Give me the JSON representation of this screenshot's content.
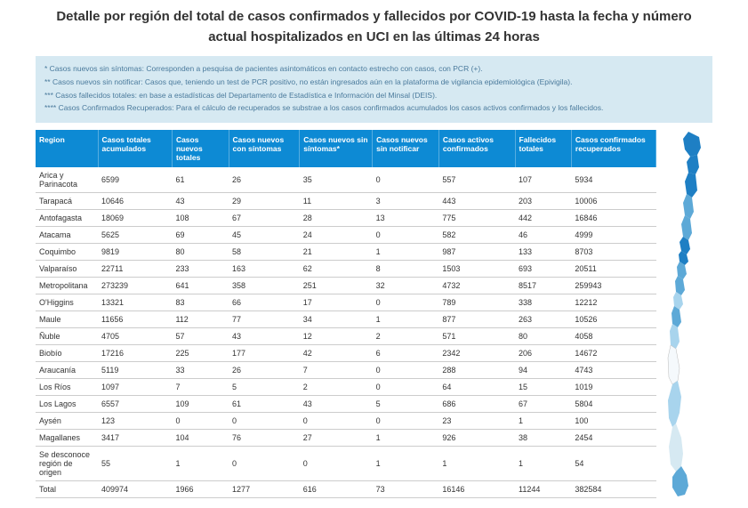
{
  "title": "Detalle por región del total de casos confirmados y fallecidos por COVID-19 hasta la fecha y número actual hospitalizados en UCI en las últimas 24 horas",
  "notes": [
    "* Casos nuevos sin síntomas: Corresponden a pesquisa de pacientes asintomáticos en contacto estrecho con casos, con PCR (+).",
    "** Casos nuevos sin notificar: Casos que, teniendo un test de PCR positivo, no están ingresados aún en la plataforma de vigilancia epidemiológica (Epivigila).",
    "*** Casos fallecidos totales: en base a  estadísticas del Departamento de Estadística e Información del Minsal (DEIS).",
    "**** Casos Confirmados Recuperados: Para el cálculo de recuperados se substrae a los casos confirmados acumulados los casos activos confirmados y los fallecidos."
  ],
  "columns": [
    "Region",
    "Casos totales acumulados",
    "Casos nuevos totales",
    "Casos nuevos con síntomas",
    "Casos nuevos sin síntomas*",
    "Casos nuevos sin notificar",
    "Casos activos confirmados",
    "Fallecidos totales",
    "Casos confirmados recuperados"
  ],
  "rows": [
    [
      "Arica y Parinacota",
      "6599",
      "61",
      "26",
      "35",
      "0",
      "557",
      "107",
      "5934"
    ],
    [
      "Tarapacá",
      "10646",
      "43",
      "29",
      "11",
      "3",
      "443",
      "203",
      "10006"
    ],
    [
      "Antofagasta",
      "18069",
      "108",
      "67",
      "28",
      "13",
      "775",
      "442",
      "16846"
    ],
    [
      "Atacama",
      "5625",
      "69",
      "45",
      "24",
      "0",
      "582",
      "46",
      "4999"
    ],
    [
      "Coquimbo",
      "9819",
      "80",
      "58",
      "21",
      "1",
      "987",
      "133",
      "8703"
    ],
    [
      "Valparaíso",
      "22711",
      "233",
      "163",
      "62",
      "8",
      "1503",
      "693",
      "20511"
    ],
    [
      "Metropolitana",
      "273239",
      "641",
      "358",
      "251",
      "32",
      "4732",
      "8517",
      "259943"
    ],
    [
      "O'Higgins",
      "13321",
      "83",
      "66",
      "17",
      "0",
      "789",
      "338",
      "12212"
    ],
    [
      "Maule",
      "11656",
      "112",
      "77",
      "34",
      "1",
      "877",
      "263",
      "10526"
    ],
    [
      "Ñuble",
      "4705",
      "57",
      "43",
      "12",
      "2",
      "571",
      "80",
      "4058"
    ],
    [
      "Biobío",
      "17216",
      "225",
      "177",
      "42",
      "6",
      "2342",
      "206",
      "14672"
    ],
    [
      "Araucanía",
      "5119",
      "33",
      "26",
      "7",
      "0",
      "288",
      "94",
      "4743"
    ],
    [
      "Los Ríos",
      "1097",
      "7",
      "5",
      "2",
      "0",
      "64",
      "15",
      "1019"
    ],
    [
      "Los Lagos",
      "6557",
      "109",
      "61",
      "43",
      "5",
      "686",
      "67",
      "5804"
    ],
    [
      "Aysén",
      "123",
      "0",
      "0",
      "0",
      "0",
      "23",
      "1",
      "100"
    ],
    [
      "Magallanes",
      "3417",
      "104",
      "76",
      "27",
      "1",
      "926",
      "38",
      "2454"
    ],
    [
      "Se desconoce región de origen",
      "55",
      "1",
      "0",
      "0",
      "1",
      "1",
      "1",
      "54"
    ],
    [
      "Total",
      "409974",
      "1966",
      "1277",
      "616",
      "73",
      "16146",
      "11244",
      "382584"
    ]
  ],
  "map_colors": {
    "dark": "#1e7fc4",
    "mid": "#5da9d7",
    "light": "#a8d4ed",
    "pale": "#d6e9f2",
    "white": "#f5f9fc"
  }
}
